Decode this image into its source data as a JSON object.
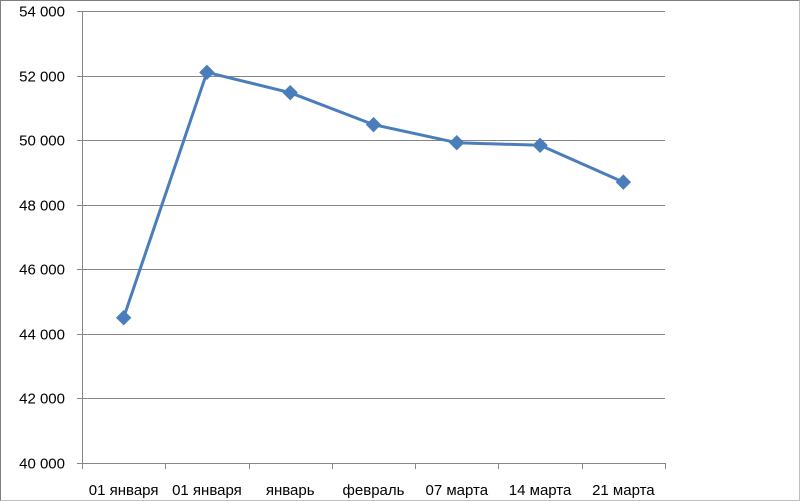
{
  "chart_data": {
    "type": "line",
    "title": "",
    "xlabel": "",
    "ylabel": "",
    "categories": [
      "01 января",
      "01 января",
      "январь",
      "февраль",
      "07 марта",
      "14 марта",
      "21 марта"
    ],
    "series": [
      {
        "values": [
          44500,
          52100,
          51470,
          50480,
          49920,
          49840,
          48700
        ]
      }
    ],
    "ylim": [
      40000,
      54000
    ],
    "y_ticks": [
      40000,
      42000,
      44000,
      46000,
      48000,
      50000,
      52000,
      54000
    ],
    "y_tick_labels": [
      "40 000",
      "42 000",
      "44 000",
      "46 000",
      "48 000",
      "50 000",
      "52 000",
      "54 000"
    ],
    "grid": "horizontal",
    "legend": "none",
    "colors": {
      "series": "#4a7ebb",
      "grid": "#868686",
      "axis": "#868686"
    },
    "marker": "diamond"
  }
}
